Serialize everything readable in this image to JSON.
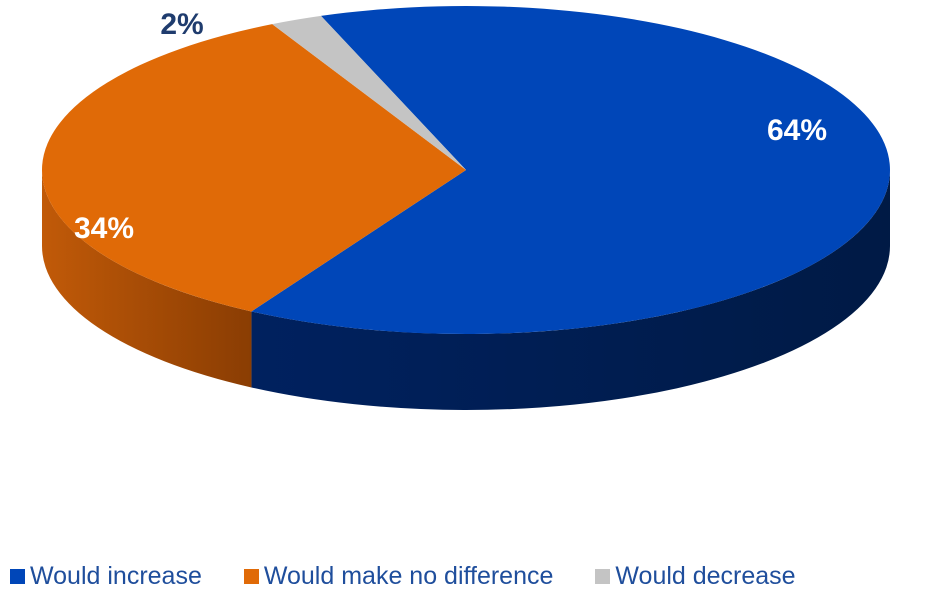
{
  "chart_data": {
    "type": "pie",
    "style": "3d",
    "categories": [
      "Would increase",
      "Would make no difference",
      "Would decrease"
    ],
    "values": [
      64,
      34,
      2
    ],
    "labels": [
      "64%",
      "34%",
      "2%"
    ],
    "colors": [
      "#0046b8",
      "#e06a07",
      "#c4c4c4"
    ],
    "label_colors": [
      "#ffffff",
      "#ffffff",
      "#1f3c6e"
    ],
    "legend_position": "bottom"
  }
}
